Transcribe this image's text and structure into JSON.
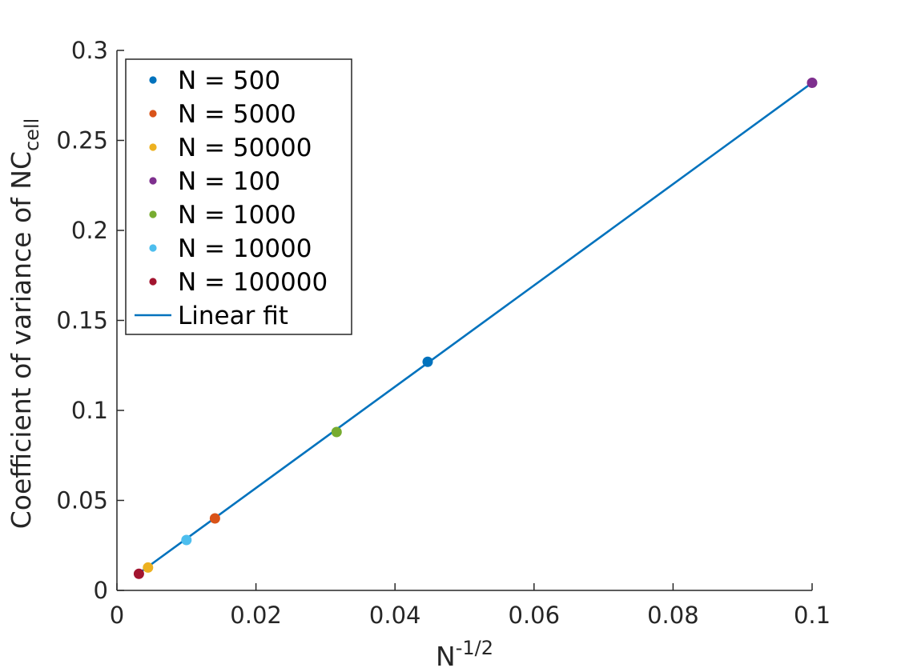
{
  "chart_data": {
    "type": "scatter",
    "xlabel": {
      "base": "N",
      "sup": "-1/2"
    },
    "ylabel": {
      "base": "Coefficient of variance of NC",
      "sub": "cell"
    },
    "xlim": [
      0,
      0.1
    ],
    "ylim": [
      0,
      0.3
    ],
    "xticks": [
      0,
      0.02,
      0.04,
      0.06,
      0.08,
      0.1
    ],
    "xtick_labels": [
      "0",
      "0.02",
      "0.04",
      "0.06",
      "0.08",
      "0.1"
    ],
    "yticks": [
      0,
      0.05,
      0.1,
      0.15,
      0.2,
      0.25,
      0.3
    ],
    "ytick_labels": [
      "0",
      "0.05",
      "0.1",
      "0.15",
      "0.2",
      "0.25",
      "0.3"
    ],
    "grid": false,
    "legend_position": "top-left",
    "series": [
      {
        "name": "N = 500",
        "color": "#0072BD",
        "points": [
          [
            0.0447,
            0.127
          ]
        ]
      },
      {
        "name": "N = 5000",
        "color": "#D95319",
        "points": [
          [
            0.0141,
            0.04
          ]
        ]
      },
      {
        "name": "N = 50000",
        "color": "#EDB120",
        "points": [
          [
            0.00447,
            0.0127
          ]
        ]
      },
      {
        "name": "N = 100",
        "color": "#7E2F8E",
        "points": [
          [
            0.1,
            0.282
          ]
        ]
      },
      {
        "name": "N = 1000",
        "color": "#77AC30",
        "points": [
          [
            0.0316,
            0.088
          ]
        ]
      },
      {
        "name": "N = 10000",
        "color": "#4DBEEE",
        "points": [
          [
            0.01,
            0.028
          ]
        ]
      },
      {
        "name": "N = 100000",
        "color": "#A2142F",
        "points": [
          [
            0.00316,
            0.0092
          ]
        ]
      }
    ],
    "fit": {
      "name": "Linear fit",
      "color": "#0072BD",
      "x": [
        0.00316,
        0.1
      ],
      "y": [
        0.0095,
        0.282
      ]
    }
  }
}
